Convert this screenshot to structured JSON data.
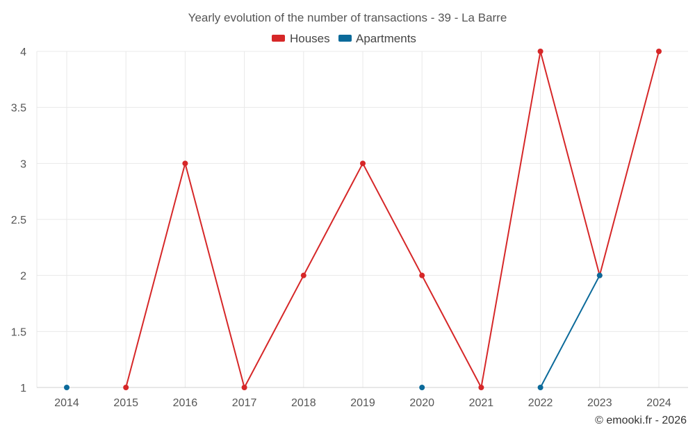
{
  "chart_data": {
    "type": "line",
    "title": "Yearly evolution of the number of transactions - 39 - La Barre",
    "categories": [
      "2014",
      "2015",
      "2016",
      "2017",
      "2018",
      "2019",
      "2020",
      "2021",
      "2022",
      "2023",
      "2024"
    ],
    "series": [
      {
        "name": "Houses",
        "color": "#d62728",
        "values": [
          null,
          1,
          3,
          1,
          2,
          3,
          2,
          1,
          4,
          2,
          4
        ]
      },
      {
        "name": "Apartments",
        "color": "#0b6a9a",
        "values": [
          1,
          null,
          null,
          null,
          null,
          null,
          1,
          null,
          1,
          2,
          null
        ]
      }
    ],
    "ylim": [
      1,
      4
    ],
    "yticks": [
      "1",
      "1.5",
      "2",
      "2.5",
      "3",
      "3.5",
      "4"
    ],
    "xlabel": "",
    "ylabel": "",
    "grid": true,
    "legend_position": "top-center"
  },
  "credit": "© emooki.fr - 2026"
}
